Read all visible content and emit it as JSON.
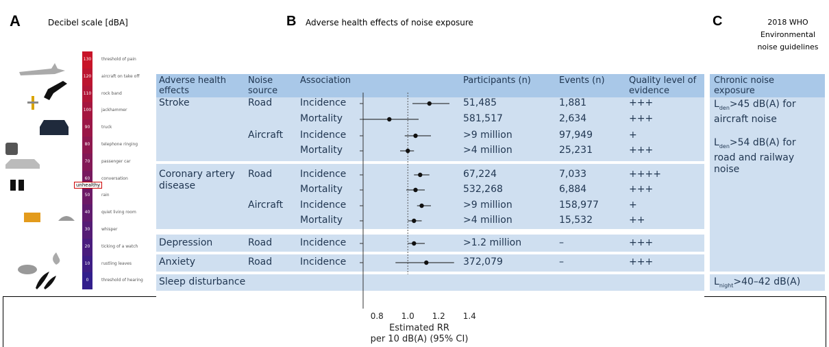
{
  "panel_a": {
    "letter": "A",
    "title": "Decibel scale [dBA]",
    "unhealthy_label": "unhealthy",
    "unhealthy_from": 60,
    "levels": [
      {
        "db": 130,
        "label": "threshold of pain"
      },
      {
        "db": 120,
        "label": "aircraft on take off"
      },
      {
        "db": 110,
        "label": "rock band"
      },
      {
        "db": 100,
        "label": "jackhammer"
      },
      {
        "db": 90,
        "label": "truck"
      },
      {
        "db": 80,
        "label": "telephone ringing"
      },
      {
        "db": 70,
        "label": "passenger car"
      },
      {
        "db": 60,
        "label": "conversation"
      },
      {
        "db": 50,
        "label": "rain"
      },
      {
        "db": 40,
        "label": "quiet living room"
      },
      {
        "db": 30,
        "label": "whisper"
      },
      {
        "db": 20,
        "label": "ticking of a watch"
      },
      {
        "db": 10,
        "label": "rustling leaves"
      },
      {
        "db": 0,
        "label": "threshold of hearing"
      }
    ]
  },
  "panel_b": {
    "letter": "B",
    "title": "Adverse health effects of noise exposure",
    "columns": [
      "Adverse health effects",
      "Noise source",
      "Association",
      "Participants (n)",
      "Events (n)",
      "Quality level of evidence"
    ],
    "rows": [
      [
        "Stroke",
        "Road",
        "Incidence",
        "51,485",
        "1,881",
        "+++"
      ],
      [
        null,
        null,
        "Mortality",
        "581,517",
        "2,634",
        "+++"
      ],
      [
        null,
        "Aircraft",
        "Incidence",
        ">9 million",
        "97,949",
        "+"
      ],
      [
        null,
        null,
        "Mortality",
        ">4 million",
        "25,231",
        "+++"
      ],
      [
        "Coronary artery disease",
        "Road",
        "Incidence",
        "67,224",
        "7,033",
        "++++"
      ],
      [
        null,
        null,
        "Mortality",
        "532,268",
        "6,884",
        "+++"
      ],
      [
        null,
        "Aircraft",
        "Incidence",
        ">9 million",
        "158,977",
        "+"
      ],
      [
        null,
        null,
        "Mortality",
        ">4 million",
        "15,532",
        "++"
      ],
      [
        "Depression",
        "Road",
        "Incidence",
        ">1.2 million",
        "–",
        "+++"
      ],
      [
        "Anxiety",
        "Road",
        "Incidence",
        "372,079",
        "–",
        "+++"
      ]
    ],
    "footer_row": "Sleep disturbance"
  },
  "chart_data": {
    "type": "forest",
    "xlabel": [
      "Estimated RR",
      "per 10 dB(A) (95% CI)"
    ],
    "xlim": [
      0.71,
      1.45
    ],
    "xticks": [
      0.8,
      {
        "value": 1,
        "label": "1.0"
      },
      1.2,
      1.4
    ],
    "reference_line": 1,
    "values": [
      1.14,
      0.88,
      1.05,
      1.0,
      1.08,
      1.05,
      1.09,
      1.04,
      1.04,
      1.12
    ],
    "ci_low": [
      1.03,
      0.71,
      0.98,
      0.95,
      1.04,
      0.99,
      1.06,
      1.0,
      1.0,
      0.92
    ],
    "ci_high": [
      1.27,
      1.07,
      1.15,
      1.04,
      1.14,
      1.11,
      1.15,
      1.09,
      1.11,
      1.3
    ],
    "color": "#111111"
  },
  "panel_c": {
    "letter": "C",
    "title": [
      "2018 WHO",
      "Environmental",
      "noise guidelines"
    ],
    "header": "Chronic noise exposure",
    "items": [
      {
        "main": "L",
        "sub": "den",
        "rest": ">45 dB(A) for aircraft noise"
      },
      {
        "main": "L",
        "sub": "den",
        "rest": ">54 dB(A) for road and railway noise"
      }
    ],
    "footer": {
      "main": "L",
      "sub": "night",
      "rest": ">40–42 dB(A)"
    }
  }
}
